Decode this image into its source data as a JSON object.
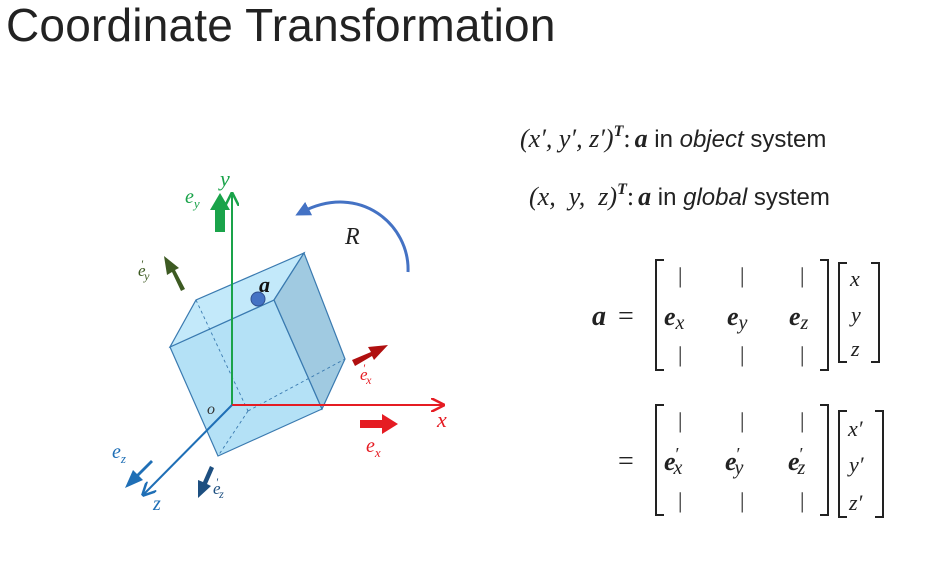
{
  "title": "Coordinate Transformation",
  "colors": {
    "y_axis": "#1aa34a",
    "x_axis": "#e51c23",
    "z_axis": "#1f6fb6",
    "rotation": "#4472c4",
    "object_y": "#3d5a22",
    "object_x": "#b01010",
    "object_z": "#1d4f80"
  },
  "diagram": {
    "y_label": "y",
    "x_label": "x",
    "z_label": "z",
    "origin_label": "o",
    "ey_label": "e",
    "ey_sub": "y",
    "ex_label": "e",
    "ex_sub": "x",
    "ez_label": "e",
    "ez_sub": "z",
    "ey_obj_label": "e",
    "ey_obj_sub": "y",
    "ex_obj_label": "e",
    "ex_obj_sub": "x",
    "ez_obj_label": "e",
    "ez_obj_sub": "z",
    "prime": "'",
    "rotation_label": "R",
    "point_label": "a"
  },
  "equations": {
    "line1_vec": "(x′, y′, z′)",
    "line1_sup": "T",
    "line1_colon": ":",
    "line1_a": "a",
    "line1_in": " in ",
    "line1_sys": "object",
    "line1_system": " system",
    "line2_vec": "(x,  y,  z)",
    "line2_sup": "T",
    "line2_colon": ":",
    "line2_a": "a",
    "line2_in": " in ",
    "line2_sys": "global",
    "line2_system": " system",
    "lhs": "a",
    "equals": "=",
    "bar": "|",
    "m1_e": "e",
    "m1_sub": [
      "x",
      "y",
      "z"
    ],
    "v1": [
      "x",
      "y",
      "z"
    ],
    "m2_e": "e",
    "m2_sub": [
      "x",
      "y",
      "z"
    ],
    "v2": [
      "x′",
      "y′",
      "z′"
    ],
    "prime": "′"
  }
}
